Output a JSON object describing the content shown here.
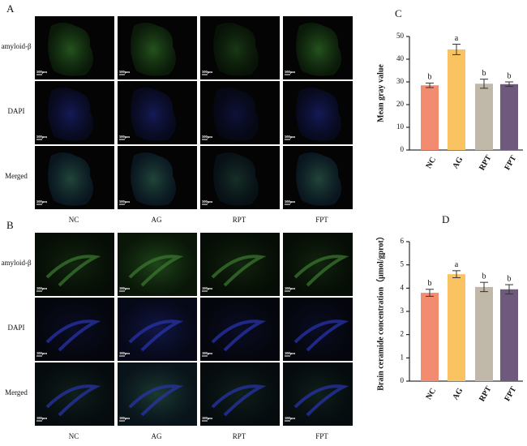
{
  "image_panels": [
    {
      "label": "A",
      "rows": [
        "amyloid-β",
        "DAPI",
        "Merged"
      ],
      "columns": [
        "NC",
        "AG",
        "RPT",
        "FPT"
      ],
      "scale_bar": "500μm"
    },
    {
      "label": "B",
      "rows": [
        "amyloid-β",
        "DAPI",
        "Merged"
      ],
      "columns": [
        "NC",
        "AG",
        "RPT",
        "FPT"
      ],
      "scale_bar": "100μm"
    }
  ],
  "chart_data": [
    {
      "type": "bar",
      "panel_label": "C",
      "ylabel": "Mean gray value",
      "categories": [
        "NC",
        "AG",
        "RPT",
        "FPT"
      ],
      "values": [
        28.5,
        44.3,
        29.2,
        29.0
      ],
      "errors": [
        1.0,
        2.3,
        2.0,
        1.0
      ],
      "annotations": [
        "b",
        "a",
        "b",
        "b"
      ],
      "colors": [
        "#f28b6f",
        "#f9c361",
        "#c0b8a8",
        "#6f5a7e"
      ],
      "ylim": [
        0,
        50
      ],
      "yticks": [
        0,
        10,
        20,
        30,
        40,
        50
      ]
    },
    {
      "type": "bar",
      "panel_label": "D",
      "ylabel": "Brain ceramide concentration（μmol/gprot）",
      "categories": [
        "NC",
        "AG",
        "RPT",
        "FPT"
      ],
      "values": [
        3.8,
        4.6,
        4.05,
        3.95
      ],
      "errors": [
        0.15,
        0.15,
        0.2,
        0.2
      ],
      "annotations": [
        "b",
        "a",
        "b",
        "b"
      ],
      "colors": [
        "#f28b6f",
        "#f9c361",
        "#c0b8a8",
        "#6f5a7e"
      ],
      "ylim": [
        0,
        6
      ],
      "yticks": [
        0,
        1,
        2,
        3,
        4,
        5,
        6
      ]
    }
  ]
}
